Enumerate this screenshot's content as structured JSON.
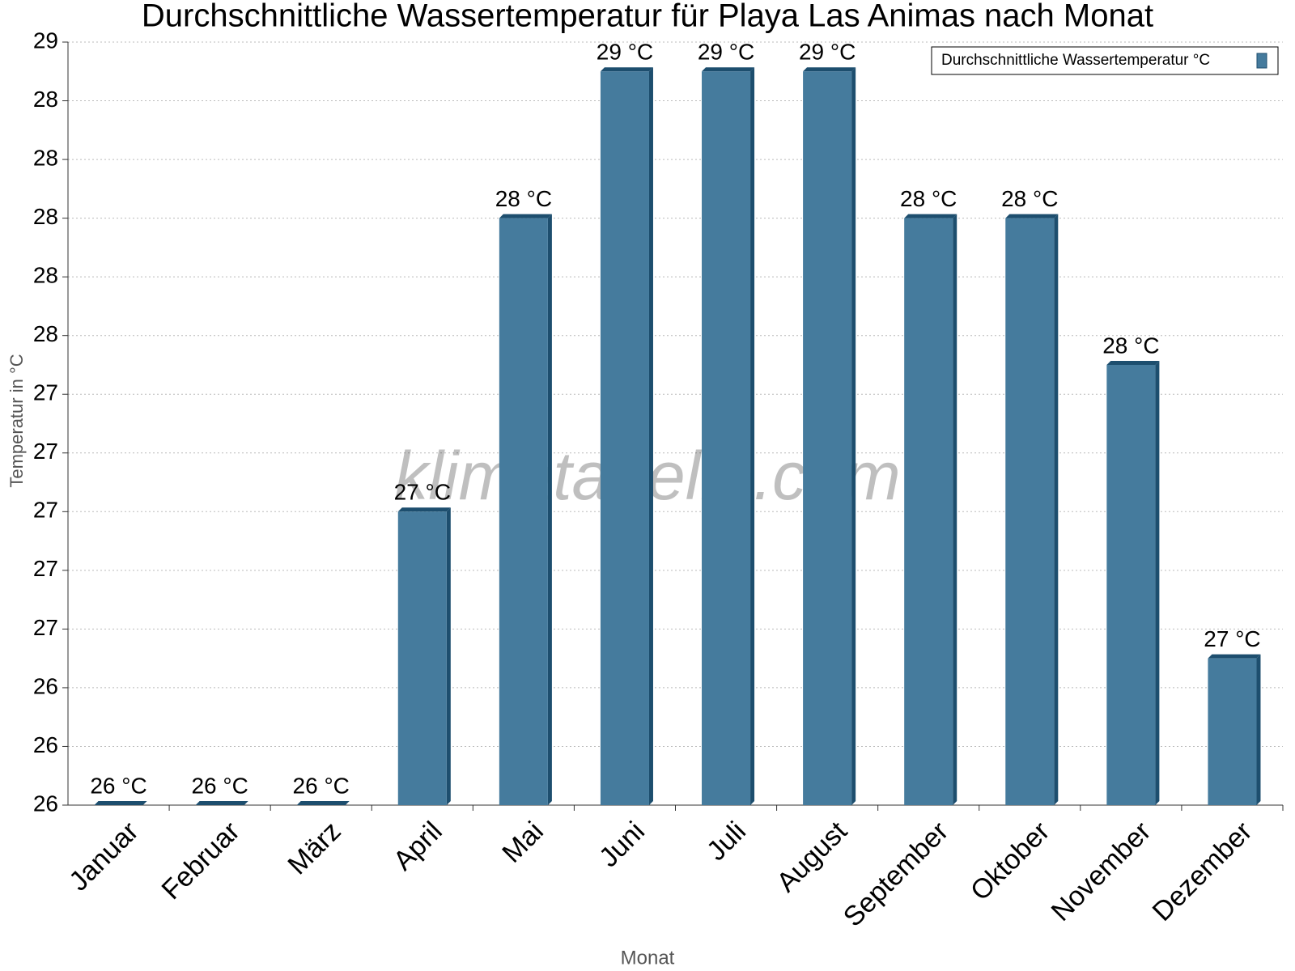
{
  "chart_data": {
    "type": "bar",
    "title": "Durchschnittliche Wassertemperatur für Playa Las Animas nach Monat",
    "x_label": "Monat",
    "y_label": "Temperatur in °C",
    "watermark": "klimatabelle.com",
    "categories": [
      "Januar",
      "Februar",
      "März",
      "April",
      "Mai",
      "Juni",
      "Juli",
      "August",
      "September",
      "Oktober",
      "November",
      "Dezember"
    ],
    "series": [
      {
        "name": "Durchschnittliche Wassertemperatur °C",
        "color": "#457b9d",
        "values": [
          26,
          26,
          26,
          27,
          28,
          28.5,
          28.5,
          28.5,
          28,
          28,
          27.5,
          26.5
        ],
        "value_labels": [
          "26 °C",
          "26 °C",
          "26 °C",
          "27 °C",
          "28 °C",
          "29 °C",
          "29 °C",
          "29 °C",
          "28 °C",
          "28 °C",
          "28 °C",
          "27 °C"
        ]
      }
    ],
    "ylim": [
      26,
      28.6
    ],
    "yticks": [
      26,
      {
        "value": 26.2,
        "label": "26"
      },
      {
        "value": 26.4,
        "label": "26"
      },
      {
        "value": 26.6,
        "label": "27"
      },
      {
        "value": 26.8,
        "label": "27"
      },
      27,
      {
        "value": 27.2,
        "label": "27"
      },
      {
        "value": 27.4,
        "label": "27"
      },
      {
        "value": 27.6,
        "label": "28"
      },
      {
        "value": 27.8,
        "label": "28"
      },
      28,
      {
        "value": 28.2,
        "label": "28"
      },
      {
        "value": 28.4,
        "label": "28"
      },
      {
        "value": 28.6,
        "label": "29"
      }
    ],
    "grid": true,
    "legend": "upper right"
  }
}
